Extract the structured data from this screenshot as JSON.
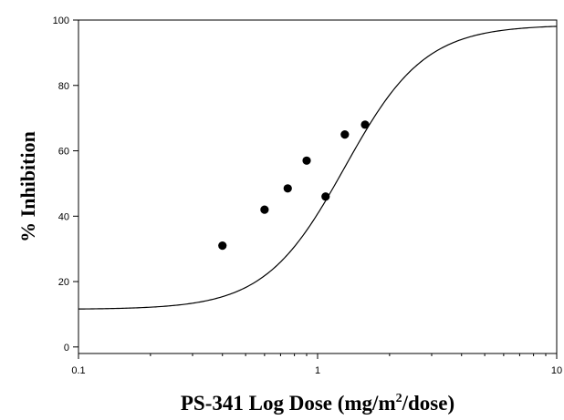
{
  "chart_data": {
    "type": "scatter",
    "title": "",
    "xlabel": "PS-341 Log Dose (mg/m²/dose)",
    "xlabel_parts": {
      "before": "PS-341 Log Dose (mg/m",
      "sup": "2",
      "after": "/dose)"
    },
    "ylabel": "% Inhibition",
    "x_scale": "log",
    "xlim": [
      0.1,
      10
    ],
    "ylim": [
      -2,
      100
    ],
    "x_ticks": [
      0.1,
      1,
      10
    ],
    "x_tick_labels": [
      "0.1",
      "1",
      "10"
    ],
    "y_ticks": [
      0,
      20,
      40,
      60,
      80,
      100
    ],
    "y_tick_labels": [
      "0",
      "20",
      "40",
      "60",
      "80",
      "100"
    ],
    "grid": false,
    "series": [
      {
        "kind": "points",
        "x": [
          0.4,
          0.6,
          0.75,
          0.9,
          1.08,
          1.3,
          1.58
        ],
        "y": [
          31,
          42,
          48.5,
          57,
          46,
          65,
          68
        ]
      },
      {
        "kind": "fit-curve",
        "bottom": 11.5,
        "top": 98.5,
        "ec50": 1.3,
        "hill": 2.6
      }
    ],
    "colors": {
      "ink": "#000000",
      "background": "#ffffff"
    }
  }
}
